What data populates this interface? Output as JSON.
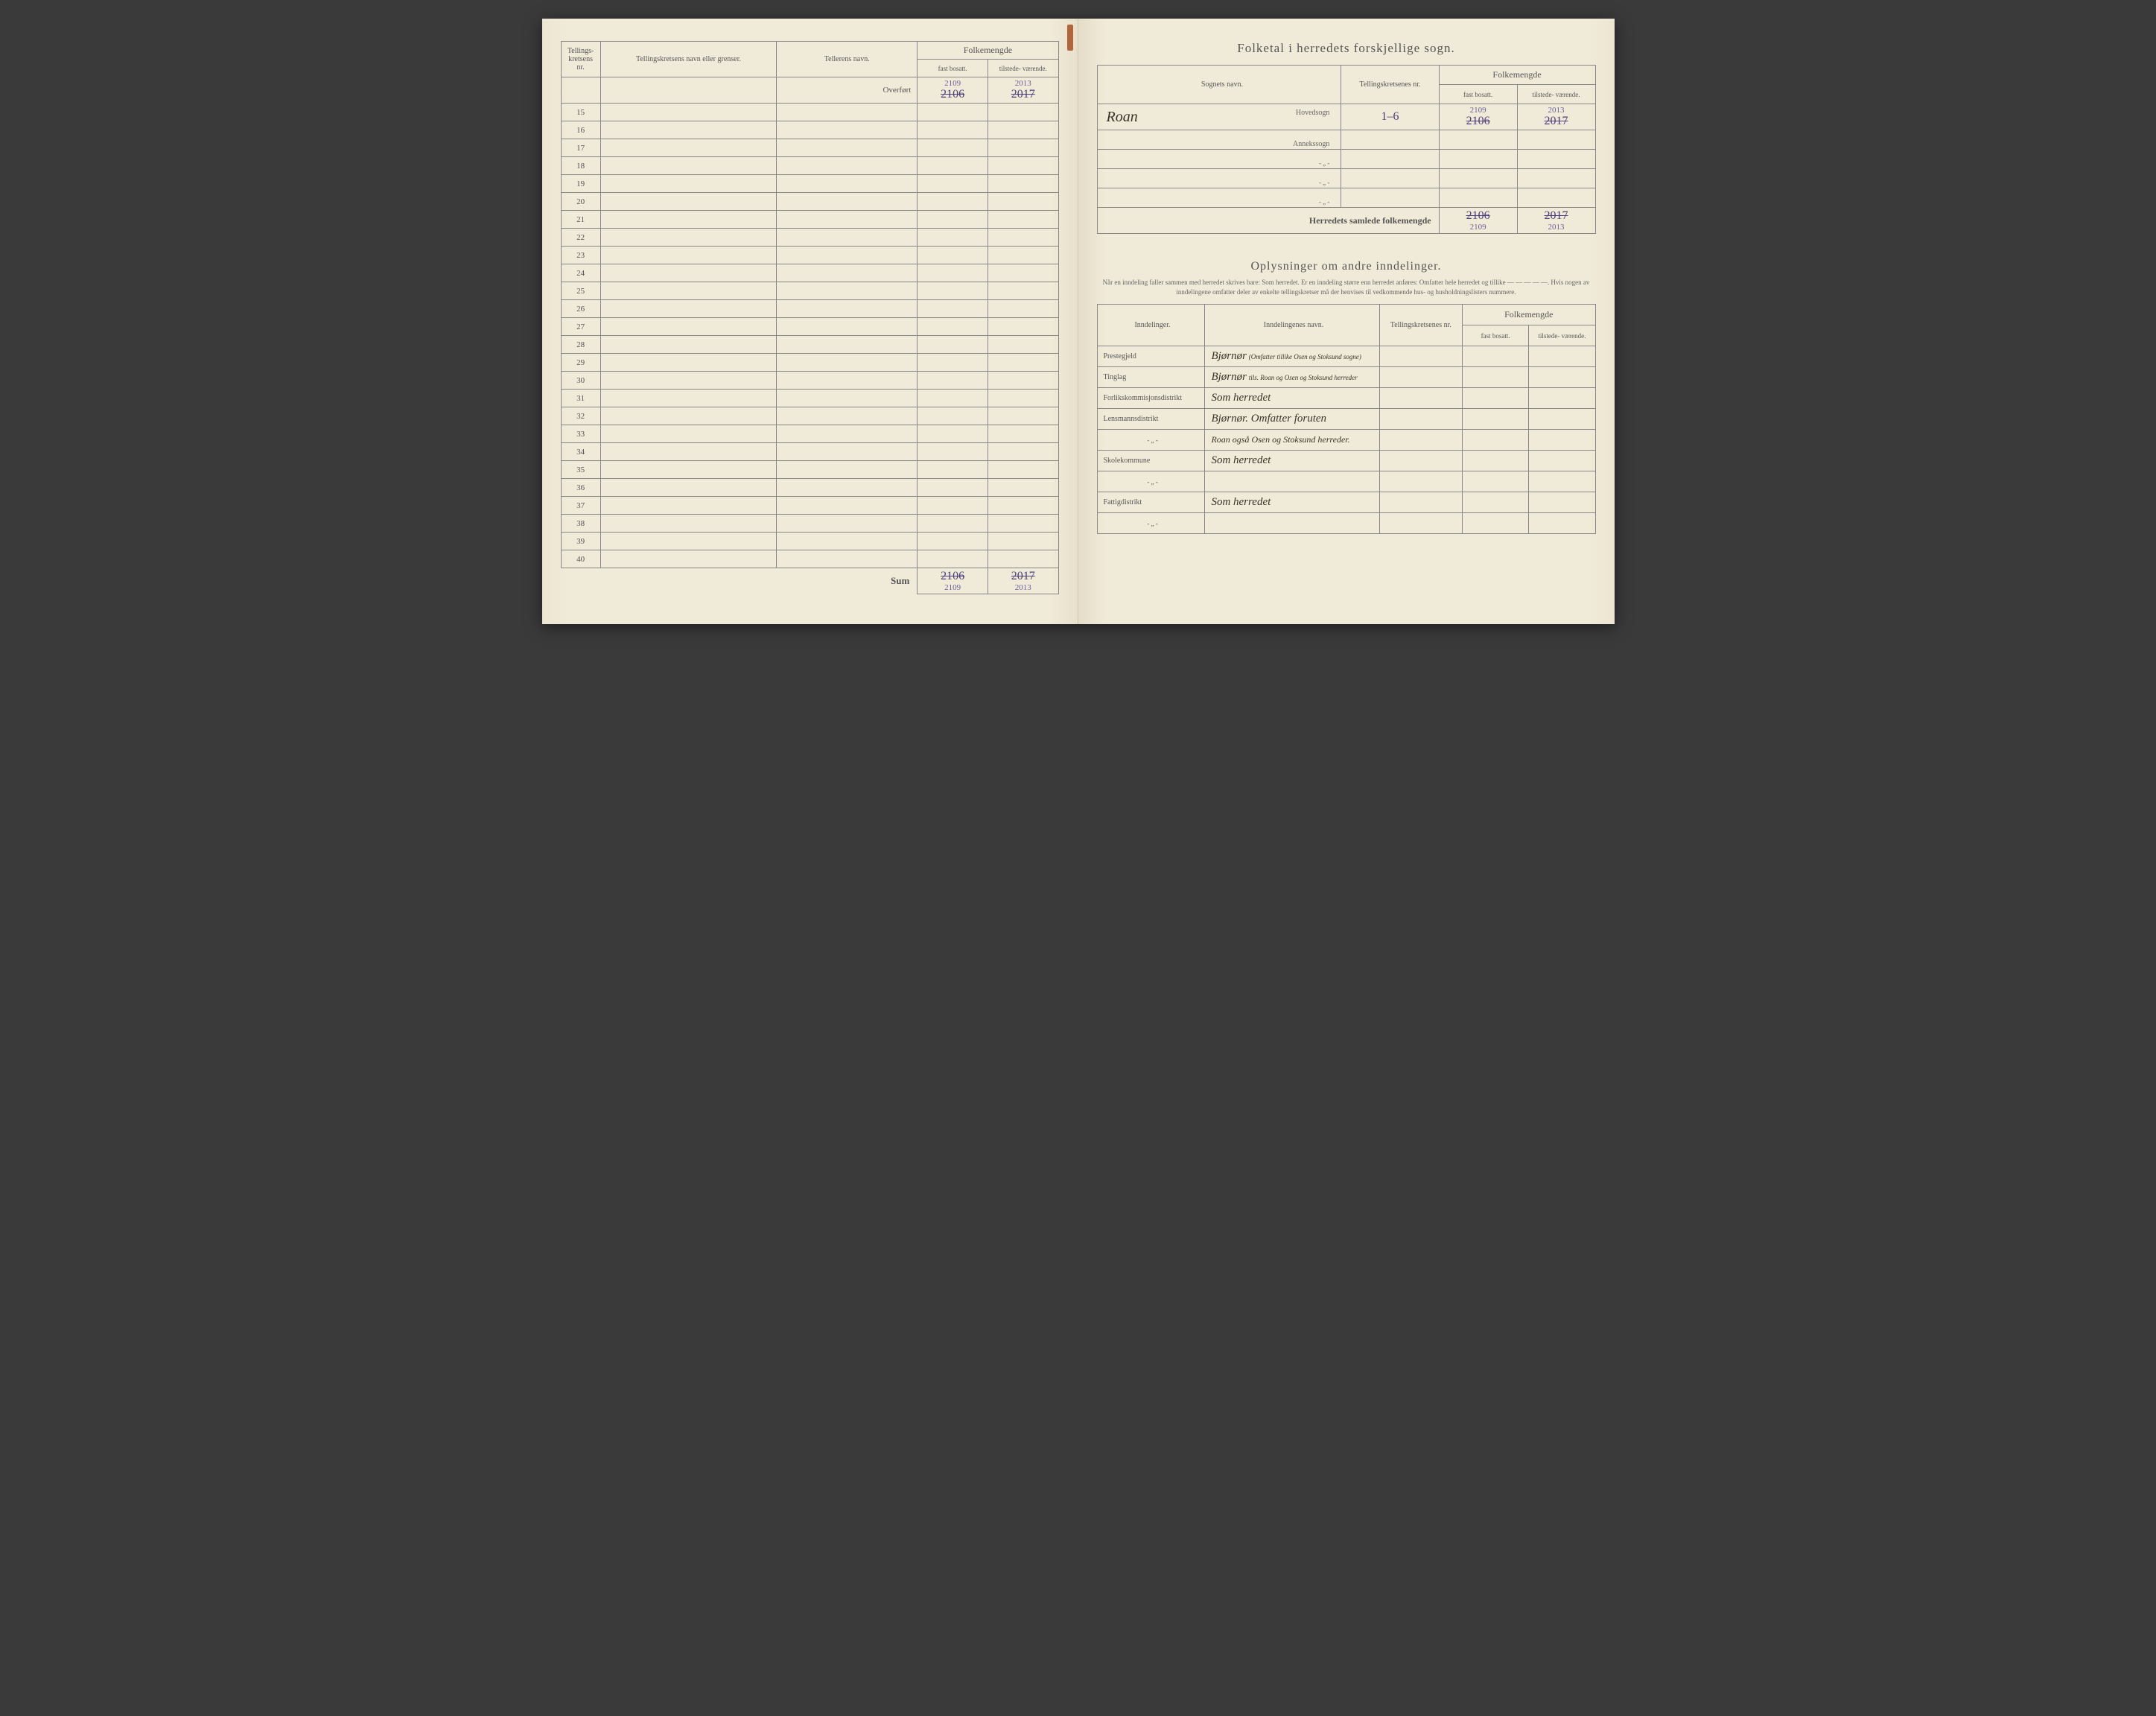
{
  "left": {
    "headers": {
      "nr": "Tellings-\nkretsens\nnr.",
      "name": "Tellingskretsens navn eller grenser.",
      "teller": "Tellerens navn.",
      "folkemengde": "Folkemengde",
      "fast": "fast\nbosatt.",
      "tilstede": "tilstede-\nværende."
    },
    "overfort": "Overført",
    "overfort_fast_corr": "2109",
    "overfort_fast_old": "2106",
    "overfort_tilst_corr": "2013",
    "overfort_tilst_old": "2017",
    "rows": [
      "15",
      "16",
      "17",
      "18",
      "19",
      "20",
      "21",
      "22",
      "23",
      "24",
      "25",
      "26",
      "27",
      "28",
      "29",
      "30",
      "31",
      "32",
      "33",
      "34",
      "35",
      "36",
      "37",
      "38",
      "39",
      "40"
    ],
    "sum": "Sum",
    "sum_fast_old": "2106",
    "sum_tilst_old": "2017",
    "sum_fast_new": "2109",
    "sum_tilst_new": "2013"
  },
  "right": {
    "title": "Folketal i herredets forskjellige sogn.",
    "headers": {
      "sogn": "Sognets navn.",
      "kretsnr": "Tellingskretsenes\nnr.",
      "folkemengde": "Folkemengde",
      "fast": "fast\nbosatt.",
      "tilstede": "tilstede-\nværende."
    },
    "sogn_name": "Roan",
    "hovedsogn": "Hovedsogn",
    "annekssogn": "Annekssogn",
    "krets_range": "1–6",
    "fast_corr": "2109",
    "fast_old": "2106",
    "tilst_corr": "2013",
    "tilst_old": "2017",
    "total_label": "Herredets samlede folkemengde",
    "total_fast_old": "2106",
    "total_fast_new": "2109",
    "total_tilst_old": "2017",
    "total_tilst_new": "2013",
    "section2_title": "Oplysninger om andre inndelinger.",
    "instructions": "Når en inndeling faller sammen med herredet skrives bare: Som herredet. Er en inndeling større enn herredet anføres: Omfatter hele herredet og tillike — — — — —. Hvis nogen av inndelingene omfatter deler av enkelte tellingskretser må der henvises til vedkommende hus- og husholdningslisters nummere.",
    "innd_headers": {
      "kind": "Inndelinger.",
      "navn": "Inndelingenes navn.",
      "kretsnr": "Tellingskretsenes\nnr.",
      "folkemengde": "Folkemengde",
      "fast": "fast\nbosatt.",
      "tilstede": "tilstede-\nværende."
    },
    "innd": {
      "prestegjeld_label": "Prestegjeld",
      "prestegjeld_val": "Bjørnør",
      "prestegjeld_note": "(Omfatter tillike Osen og Stoksund sogne)",
      "tinglag_label": "Tinglag",
      "tinglag_val": "Bjørnør",
      "tinglag_note": "tils. Roan og Osen og Stoksund herreder",
      "forlik_label": "Forlikskommisjonsdistrikt",
      "forlik_val": "Som herredet",
      "lensmann_label": "Lensmannsdistrikt",
      "lensmann_val": "Bjørnør. Omfatter foruten",
      "lensmann_val2": "Roan også Osen og Stoksund herreder.",
      "skole_label": "Skolekommune",
      "skole_val": "Som herredet",
      "fattig_label": "Fattigdistrikt",
      "fattig_val": "Som herredet"
    }
  }
}
